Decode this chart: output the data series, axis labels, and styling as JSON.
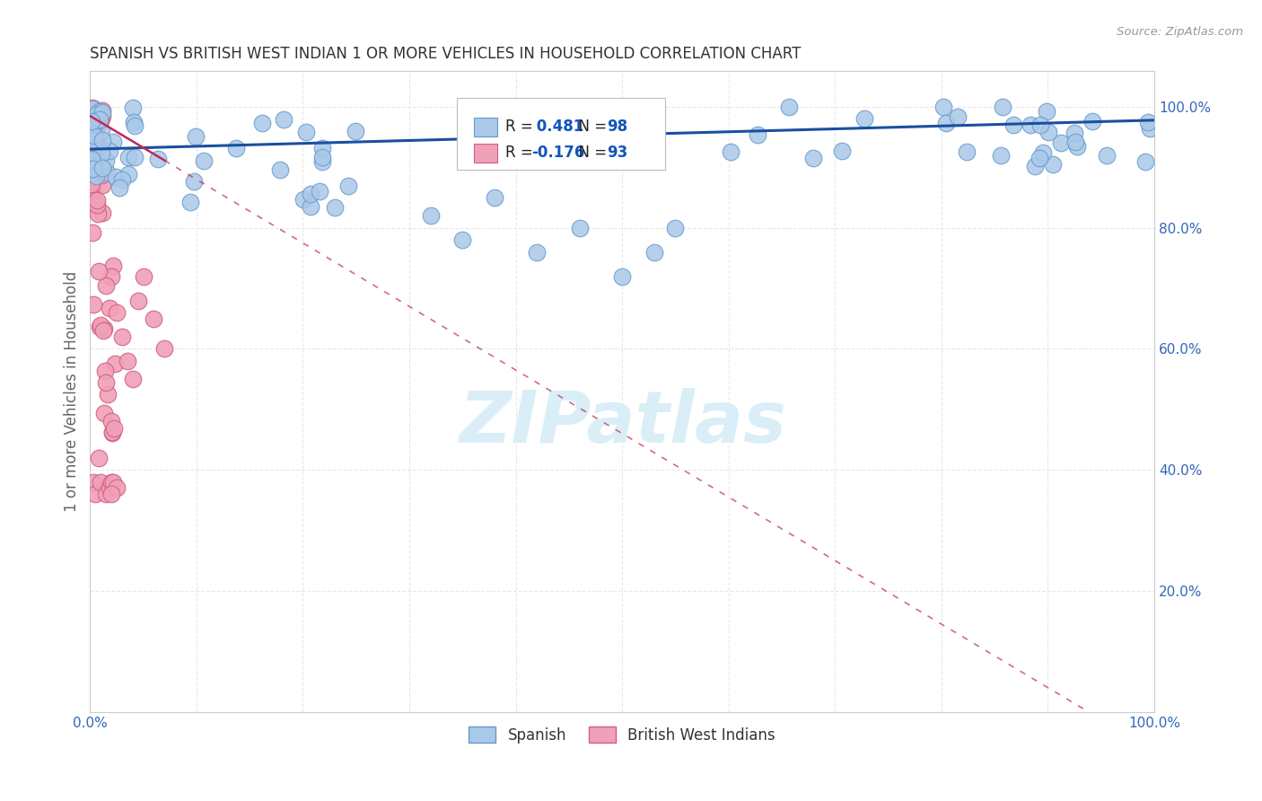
{
  "title": "SPANISH VS BRITISH WEST INDIAN 1 OR MORE VEHICLES IN HOUSEHOLD CORRELATION CHART",
  "source": "Source: ZipAtlas.com",
  "ylabel": "1 or more Vehicles in Household",
  "xlim": [
    0.0,
    1.0
  ],
  "ylim": [
    0.0,
    1.06
  ],
  "yticks": [
    0.2,
    0.4,
    0.6,
    0.8,
    1.0
  ],
  "ytick_labels": [
    "20.0%",
    "40.0%",
    "60.0%",
    "80.0%",
    "100.0%"
  ],
  "xticks": [
    0.0,
    0.1,
    0.2,
    0.3,
    0.4,
    0.5,
    0.6,
    0.7,
    0.8,
    0.9,
    1.0
  ],
  "xtick_labels": [
    "0.0%",
    "",
    "",
    "",
    "",
    "",
    "",
    "",
    "",
    "",
    "100.0%"
  ],
  "spanish_R": 0.481,
  "spanish_N": 98,
  "bwi_R": -0.176,
  "bwi_N": 93,
  "spanish_color": "#aac8e8",
  "spanish_edge": "#6699cc",
  "bwi_color": "#f0a0b8",
  "bwi_edge": "#d06080",
  "trend_spanish_color": "#1a4fa0",
  "trend_bwi_color": "#c02858",
  "watermark_color": "#daeef8",
  "background_color": "#ffffff",
  "grid_color": "#e8e8e8",
  "sp_trend_intercept": 0.93,
  "sp_trend_slope": 0.048,
  "bwi_trend_intercept": 0.985,
  "bwi_trend_slope": -1.05
}
